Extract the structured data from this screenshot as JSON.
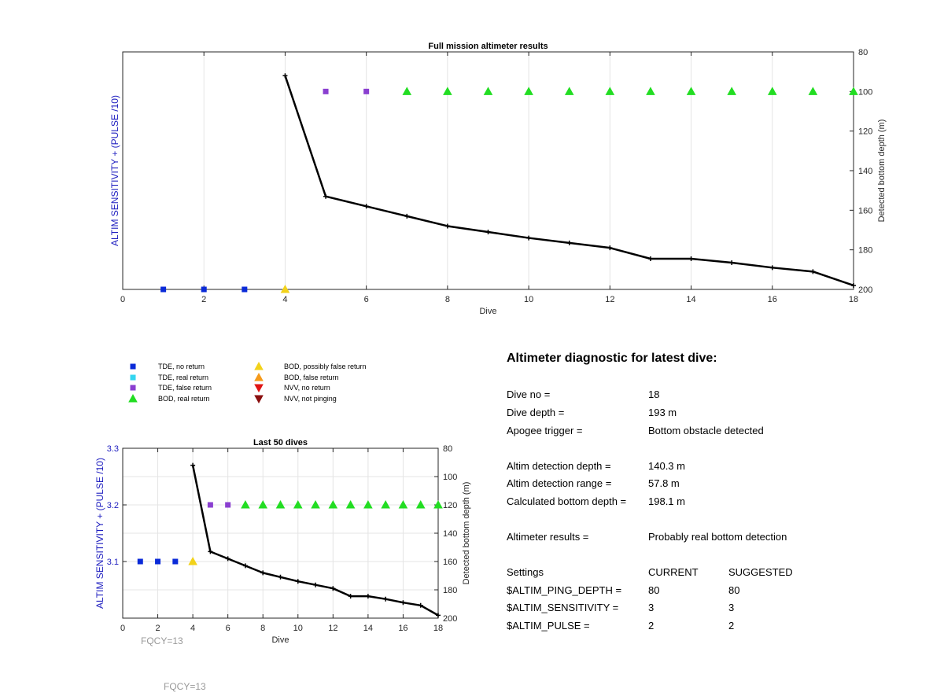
{
  "chart_data": [
    {
      "id": "full",
      "type": "scatter",
      "title": "Full mission altimeter results",
      "xlabel": "Dive",
      "ylabel_left": "ALTIM SENSITIVITY + (PULSE /10)",
      "ylabel_right": "Detected bottom depth (m)",
      "xlim": [
        0,
        18
      ],
      "xticks": [
        0,
        2,
        4,
        6,
        8,
        10,
        12,
        14,
        16,
        18
      ],
      "y_right_lim": [
        200,
        80
      ],
      "y_right_ticks": [
        80,
        100,
        120,
        140,
        160,
        180,
        200
      ],
      "grid": "x",
      "series": [
        {
          "name": "TDE, no return",
          "marker": "square",
          "color": "#0a2ad8",
          "x": [
            1,
            2,
            3
          ],
          "y_depth": [
            200,
            200,
            200
          ]
        },
        {
          "name": "TDE, false return",
          "marker": "square",
          "color": "#8a3fd0",
          "x": [
            5,
            6
          ],
          "y_depth": [
            100,
            100
          ]
        },
        {
          "name": "BOD, real return",
          "marker": "triangle-up",
          "color": "#22dd22",
          "x": [
            7,
            8,
            9,
            10,
            11,
            12,
            13,
            14,
            15,
            16,
            17,
            18
          ],
          "y_depth": [
            100,
            100,
            100,
            100,
            100,
            100,
            100,
            100,
            100,
            100,
            100,
            100
          ]
        },
        {
          "name": "BOD, possibly false return",
          "marker": "triangle-up",
          "color": "#f2d21a",
          "x": [
            4
          ],
          "y_depth": [
            200
          ]
        },
        {
          "name": "Detected bottom depth",
          "marker": "line",
          "color": "#000000",
          "x": [
            4,
            5,
            6,
            7,
            8,
            9,
            10,
            11,
            12,
            13,
            14,
            15,
            16,
            17,
            18
          ],
          "y_depth": [
            92,
            153,
            158,
            163,
            168,
            171,
            174,
            176.5,
            179,
            184.5,
            184.5,
            186.5,
            189,
            191,
            198
          ]
        }
      ]
    },
    {
      "id": "last50",
      "type": "scatter",
      "title": "Last 50 dives",
      "xlabel": "Dive",
      "ylabel_left": "ALTIM SENSITIVITY + (PULSE /10)",
      "ylabel_right": "Detected bottom depth (m)",
      "xlim": [
        0,
        18
      ],
      "xticks": [
        0,
        2,
        4,
        6,
        8,
        10,
        12,
        14,
        16,
        18
      ],
      "y_left_ticks": [
        3.1,
        3.2,
        3.3
      ],
      "y_right_lim": [
        200,
        80
      ],
      "y_right_ticks": [
        80,
        100,
        120,
        140,
        160,
        180,
        200
      ],
      "grid": "both",
      "series": [
        {
          "name": "TDE, no return",
          "marker": "square",
          "color": "#0a2ad8",
          "x": [
            1,
            2,
            3
          ],
          "y_depth": [
            160,
            160,
            160
          ]
        },
        {
          "name": "TDE, false return",
          "marker": "square",
          "color": "#8a3fd0",
          "x": [
            5,
            6
          ],
          "y_depth": [
            120,
            120
          ]
        },
        {
          "name": "BOD, real return",
          "marker": "triangle-up",
          "color": "#22dd22",
          "x": [
            7,
            8,
            9,
            10,
            11,
            12,
            13,
            14,
            15,
            16,
            17,
            18
          ],
          "y_depth": [
            120,
            120,
            120,
            120,
            120,
            120,
            120,
            120,
            120,
            120,
            120,
            120
          ]
        },
        {
          "name": "BOD, possibly false return",
          "marker": "triangle-up",
          "color": "#f2d21a",
          "x": [
            4
          ],
          "y_depth": [
            160
          ]
        },
        {
          "name": "Detected bottom depth",
          "marker": "line",
          "color": "#000000",
          "x": [
            4,
            5,
            6,
            7,
            8,
            9,
            10,
            11,
            12,
            13,
            14,
            15,
            16,
            17,
            18
          ],
          "y_depth": [
            92,
            153,
            158,
            163,
            168,
            171,
            174,
            176.5,
            179,
            184.5,
            184.5,
            186.5,
            189,
            191,
            198
          ]
        }
      ]
    }
  ],
  "legend": [
    {
      "label": "TDE, no return",
      "marker": "square",
      "color": "#0a2ad8"
    },
    {
      "label": "TDE, real return",
      "marker": "square",
      "color": "#33d6f0"
    },
    {
      "label": "TDE, false return",
      "marker": "square",
      "color": "#8a3fd0"
    },
    {
      "label": "BOD, real return",
      "marker": "triangle-up",
      "color": "#22dd22"
    },
    {
      "label": "BOD, possibly false return",
      "marker": "triangle-up",
      "color": "#f2d21a"
    },
    {
      "label": "BOD, false return",
      "marker": "triangle-up",
      "color": "#f59a1a"
    },
    {
      "label": "NVV, no return",
      "marker": "triangle-down",
      "color": "#e01414"
    },
    {
      "label": "NVV, not pinging",
      "marker": "triangle-down",
      "color": "#8a0f0f"
    }
  ],
  "fqcy_label": "FQCY=13",
  "diagnostic": {
    "title": "Altimeter diagnostic for latest dive:",
    "dive_no": {
      "label": "Dive no =",
      "value": "18"
    },
    "dive_depth": {
      "label": "Dive depth =",
      "value": "193 m"
    },
    "apogee": {
      "label": "Apogee trigger =",
      "value": "Bottom obstacle detected"
    },
    "detection_depth": {
      "label": "Altim detection depth =",
      "value": "140.3 m"
    },
    "detection_range": {
      "label": "Altim detection range =",
      "value": "57.8 m"
    },
    "bottom_depth": {
      "label": "Calculated bottom depth =",
      "value": "198.1 m"
    },
    "results": {
      "label": "Altimeter results =",
      "value": "Probably real bottom detection"
    },
    "settings_header": {
      "label": "Settings",
      "current": "CURRENT",
      "suggested": "SUGGESTED"
    },
    "ping_depth": {
      "label": "$ALTIM_PING_DEPTH =",
      "current": "80",
      "suggested": "80"
    },
    "sensitivity": {
      "label": "$ALTIM_SENSITIVITY =",
      "current": "3",
      "suggested": "3"
    },
    "pulse": {
      "label": "$ALTIM_PULSE =",
      "current": "2",
      "suggested": "2"
    }
  }
}
